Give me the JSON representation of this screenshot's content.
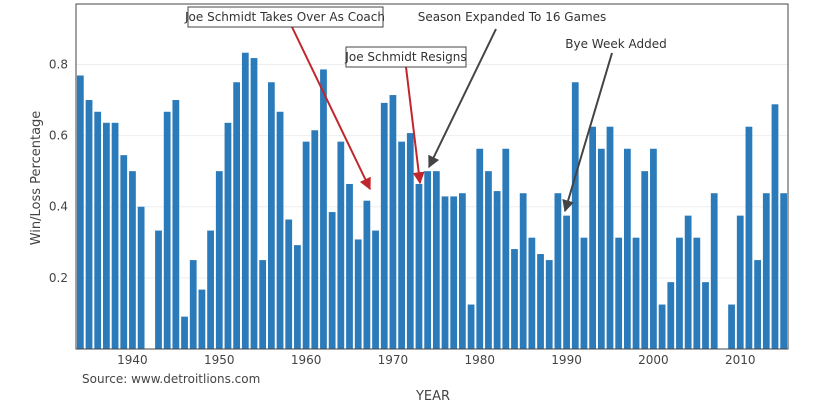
{
  "chart_data": {
    "type": "bar",
    "title": "",
    "xlabel": "YEAR",
    "ylabel": "Win/Loss Percentage",
    "source": "Source: www.detroitlions.com",
    "xlim": [
      1933.5,
      2015.5
    ],
    "ylim": [
      0,
      0.97
    ],
    "grid": true,
    "bar_color": "#2b7bba",
    "x_ticks": [
      1940,
      1950,
      1960,
      1970,
      1980,
      1990,
      2000,
      2010
    ],
    "y_ticks": [
      0.2,
      0.4,
      0.6,
      0.8
    ],
    "x": [
      1934,
      1935,
      1936,
      1937,
      1938,
      1939,
      1940,
      1941,
      1942,
      1943,
      1944,
      1945,
      1946,
      1947,
      1948,
      1949,
      1950,
      1951,
      1952,
      1953,
      1954,
      1955,
      1956,
      1957,
      1958,
      1959,
      1960,
      1961,
      1962,
      1963,
      1964,
      1965,
      1966,
      1967,
      1968,
      1969,
      1970,
      1971,
      1972,
      1973,
      1974,
      1975,
      1976,
      1977,
      1978,
      1979,
      1980,
      1981,
      1982,
      1983,
      1984,
      1985,
      1986,
      1987,
      1988,
      1989,
      1990,
      1991,
      1992,
      1993,
      1994,
      1995,
      1996,
      1997,
      1998,
      1999,
      2000,
      2001,
      2002,
      2003,
      2004,
      2005,
      2006,
      2007,
      2008,
      2009,
      2010,
      2011,
      2012,
      2013,
      2014,
      2015
    ],
    "values": [
      0.769,
      0.7,
      0.667,
      0.636,
      0.636,
      0.545,
      0.5,
      0.4,
      0,
      0.333,
      0.667,
      0.7,
      0.091,
      0.25,
      0.167,
      0.333,
      0.5,
      0.636,
      0.75,
      0.833,
      0.818,
      0.25,
      0.75,
      0.667,
      0.364,
      0.292,
      0.583,
      0.615,
      0.786,
      0.385,
      0.583,
      0.464,
      0.308,
      0.417,
      0.333,
      0.692,
      0.714,
      0.583,
      0.607,
      0.464,
      0.5,
      0.5,
      0.429,
      0.429,
      0.438,
      0.125,
      0.563,
      0.5,
      0.444,
      0.563,
      0.281,
      0.438,
      0.313,
      0.267,
      0.25,
      0.438,
      0.375,
      0.75,
      0.313,
      0.625,
      0.563,
      0.625,
      0.313,
      0.563,
      0.313,
      0.5,
      0.563,
      0.125,
      0.188,
      0.313,
      0.375,
      0.313,
      0.188,
      0.438,
      0,
      0.125,
      0.375,
      0.625,
      0.25,
      0.438,
      0.688,
      0.438
    ],
    "annotations": [
      {
        "text": "Joe Schmidt Takes Over As Coach",
        "boxed": true,
        "arrow_color": "#c0272d",
        "x": 1967,
        "y": 0.45
      },
      {
        "text": "Joe Schmidt Resigns",
        "boxed": true,
        "arrow_color": "#c0272d",
        "x": 1973,
        "y": 0.46
      },
      {
        "text": "Season Expanded To 16 Games",
        "boxed": false,
        "arrow_color": "#444444",
        "x": 1974,
        "y": 0.51
      },
      {
        "text": "Bye Week Added",
        "boxed": false,
        "arrow_color": "#444444",
        "x": 1990,
        "y": 0.39
      }
    ]
  }
}
